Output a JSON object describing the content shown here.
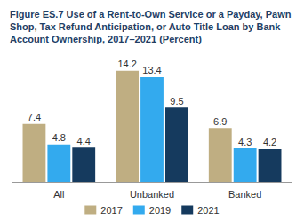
{
  "chart_data": {
    "type": "bar",
    "title": "Figure ES.7 Use of a Rent-to-Own Service or a Payday, Pawn Shop, Tax Refund Anticipation, or Auto Title Loan by Bank Account Ownership, 2017–2021 (Percent)",
    "categories": [
      "All",
      "Unbanked",
      "Banked"
    ],
    "series": [
      {
        "name": "2017",
        "color": "#bfae82",
        "values": [
          7.4,
          14.2,
          6.9
        ]
      },
      {
        "name": "2019",
        "color": "#33aaee",
        "values": [
          4.8,
          13.4,
          4.3
        ]
      },
      {
        "name": "2021",
        "color": "#153a5e",
        "values": [
          4.4,
          9.5,
          4.2
        ]
      }
    ],
    "ylim": [
      0,
      16
    ],
    "grid": false,
    "legend": "bottom",
    "data_labels": true,
    "tick_labels": "x"
  }
}
